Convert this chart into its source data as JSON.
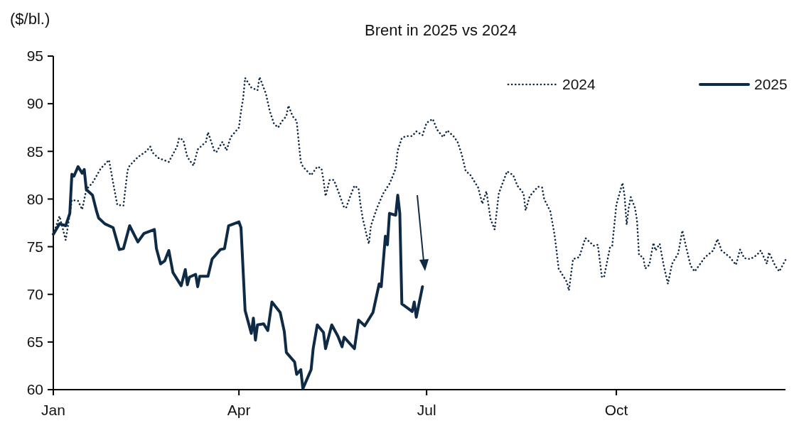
{
  "chart_data": {
    "type": "line",
    "title": "Brent in 2025 vs 2024",
    "ylabel": "($/bl.)",
    "xlim": [
      "--01-01",
      "--12-22"
    ],
    "xticks": [
      {
        "value": "--01-01",
        "label": "Jan"
      },
      {
        "value": "--04-01",
        "label": "Apr"
      },
      {
        "value": "--07-01",
        "label": "Jul"
      },
      {
        "value": "--10-01",
        "label": "Oct"
      }
    ],
    "ylim": [
      60,
      95
    ],
    "yticks": [
      60,
      65,
      70,
      75,
      80,
      85,
      90,
      95
    ],
    "legend": "top right",
    "grid": false,
    "series": [
      {
        "name": "2024",
        "color": "#0f2a45",
        "line_style": "dotted",
        "x": [
          "--01-01",
          "--01-04",
          "--01-07",
          "--01-08",
          "--01-10",
          "--01-13",
          "--01-15",
          "--01-17",
          "--01-20",
          "--01-24",
          "--01-28",
          "--01-30",
          "--02-01",
          "--02-04",
          "--02-06",
          "--02-07",
          "--02-11",
          "--02-15",
          "--02-17",
          "--02-18",
          "--02-21",
          "--02-26",
          "--03-02",
          "--03-03",
          "--03-05",
          "--03-07",
          "--03-10",
          "--03-12",
          "--03-16",
          "--03-17",
          "--03-20",
          "--03-21",
          "--03-24",
          "--03-26",
          "--03-28",
          "--04-01",
          "--04-02",
          "--04-03",
          "--04-04",
          "--04-07",
          "--04-10",
          "--04-11",
          "--04-14",
          "--04-16",
          "--04-18",
          "--04-20",
          "--04-22",
          "--04-24",
          "--04-25",
          "--04-27",
          "--04-29",
          "--04-30",
          "--05-01",
          "--05-02",
          "--05-06",
          "--05-09",
          "--05-11",
          "--05-12",
          "--05-13",
          "--05-15",
          "--05-17",
          "--05-19",
          "--05-22",
          "--05-23",
          "--05-25",
          "--05-27",
          "--05-29",
          "--05-30",
          "--05-31",
          "--06-02",
          "--06-03",
          "--06-04",
          "--06-07",
          "--06-10",
          "--06-13",
          "--06-14",
          "--06-16",
          "--06-17",
          "--06-19",
          "--06-21",
          "--06-24",
          "--06-26",
          "--06-29",
          "--07-01",
          "--07-04",
          "--07-06",
          "--07-09",
          "--07-11",
          "--07-14",
          "--07-16",
          "--07-18",
          "--07-20",
          "--07-22",
          "--07-26",
          "--07-28",
          "--07-30",
          "--08-01",
          "--08-03",
          "--08-05",
          "--08-09",
          "--08-12",
          "--08-14",
          "--08-17",
          "--08-18",
          "--08-20",
          "--08-24",
          "--08-26",
          "--08-27",
          "--08-30",
          "--09-01",
          "--09-02",
          "--09-03",
          "--09-07",
          "--09-08",
          "--09-10",
          "--09-13",
          "--09-16",
          "--09-20",
          "--09-22",
          "--09-24",
          "--09-25",
          "--09-28",
          "--09-29",
          "--10-01",
          "--10-04",
          "--10-05",
          "--10-06",
          "--10-07",
          "--10-08",
          "--10-10",
          "--10-11",
          "--10-12",
          "--10-14",
          "--10-15",
          "--10-17",
          "--10-19",
          "--10-20",
          "--10-22",
          "--10-24",
          "--10-26",
          "--10-28",
          "--10-31",
          "--11-02",
          "--11-04",
          "--11-06",
          "--11-08",
          "--11-10",
          "--11-13",
          "--11-17",
          "--11-19",
          "--11-21",
          "--11-25",
          "--11-28",
          "--11-30",
          "--12-02",
          "--12-05",
          "--12-08",
          "--12-10",
          "--12-13",
          "--12-14",
          "--12-17",
          "--12-19",
          "--12-22"
        ],
        "values": [
          76.3,
          78.2,
          75.7,
          77,
          79.9,
          79.8,
          78.9,
          81,
          81.7,
          83.2,
          84.1,
          81.7,
          79.4,
          79.3,
          83,
          83.5,
          84.4,
          85,
          85.5,
          84.9,
          84.3,
          83.9,
          85.5,
          86.4,
          86.2,
          84.4,
          83.5,
          85.2,
          86,
          87,
          85.1,
          84.9,
          86,
          85.1,
          86.5,
          87.5,
          89.2,
          90.5,
          92.7,
          91.7,
          91.4,
          92.8,
          91.1,
          89.2,
          87.9,
          87.5,
          88.2,
          88.7,
          89.8,
          88.7,
          88.2,
          86,
          83.9,
          83.4,
          82.5,
          83.4,
          83.2,
          82,
          80.3,
          82,
          82,
          80.9,
          79.1,
          79.1,
          80.3,
          81.4,
          81.1,
          79.3,
          78,
          76.1,
          75.3,
          77.2,
          79.1,
          80.6,
          81.6,
          82.1,
          83.2,
          85.1,
          86.4,
          86.6,
          86.6,
          87.1,
          86.7,
          88,
          88.4,
          87.3,
          86.5,
          87.2,
          86.6,
          86,
          84.7,
          82.9,
          82.6,
          81.2,
          79.5,
          80.8,
          77.9,
          76.8,
          80.6,
          82.9,
          82.5,
          81.4,
          80.6,
          78.8,
          80.3,
          81.3,
          81.2,
          80,
          78.7,
          76.3,
          74.6,
          72.7,
          71.3,
          70.4,
          73.7,
          73.9,
          75.9,
          75.1,
          75.2,
          71.8,
          71.8,
          75,
          75.1,
          79.4,
          81.7,
          80.3,
          77.3,
          79.1,
          80.2,
          79.1,
          77.8,
          74.1,
          73.9,
          72.7,
          73.1,
          75.4,
          74.6,
          75.3,
          73,
          71.1,
          73.2,
          74.3,
          76.7,
          74.8,
          73,
          72.4,
          73,
          73.9,
          74.6,
          75.8,
          74.6,
          73.9,
          73.1,
          74.7,
          73.8,
          73.7,
          74.1,
          74.6,
          73.2,
          74.4,
          73,
          72.4,
          73.6
        ]
      },
      {
        "name": "2025",
        "color": "#0f2a45",
        "line_style": "solid",
        "x": [
          "--01-01",
          "--01-04",
          "--01-07",
          "--01-09",
          "--01-10",
          "--01-11",
          "--01-13",
          "--01-15",
          "--01-16",
          "--01-17",
          "--01-20",
          "--01-22",
          "--01-23",
          "--01-26",
          "--01-30",
          "--02-02",
          "--02-04",
          "--02-07",
          "--02-11",
          "--02-14",
          "--02-19",
          "--02-20",
          "--02-22",
          "--02-24",
          "--02-26",
          "--02-28",
          "--03-04",
          "--03-06",
          "--03-07",
          "--03-08",
          "--03-11",
          "--03-12",
          "--03-13",
          "--03-17",
          "--03-19",
          "--03-23",
          "--03-25",
          "--03-27",
          "--04-01",
          "--04-02",
          "--04-04",
          "--04-07",
          "--04-08",
          "--04-09",
          "--04-10",
          "--04-13",
          "--04-15",
          "--04-17",
          "--04-21",
          "--04-23",
          "--04-24",
          "--04-28",
          "--04-29",
          "--05-01",
          "--05-02",
          "--05-06",
          "--05-07",
          "--05-09",
          "--05-12",
          "--05-13",
          "--05-16",
          "--05-19",
          "--05-21",
          "--05-22",
          "--05-27",
          "--05-29",
          "--06-01",
          "--06-05",
          "--06-08",
          "--06-09",
          "--06-11",
          "--06-12",
          "--06-13",
          "--06-16",
          "--06-17",
          "--06-18",
          "--06-19",
          "--06-24",
          "--06-25",
          "--06-26",
          "--06-29"
        ],
        "values": [
          76.3,
          77.4,
          77.2,
          78.5,
          82.6,
          82.4,
          83.4,
          82.7,
          83.1,
          81,
          80.4,
          78.7,
          78,
          77.4,
          77,
          74.7,
          74.8,
          77.2,
          75.5,
          76.4,
          76.8,
          74.8,
          73.2,
          73.5,
          74.6,
          72.3,
          70.9,
          72.6,
          71,
          71.8,
          72.1,
          70.8,
          71.9,
          71.9,
          73.7,
          74.7,
          74.8,
          77.2,
          77.6,
          77,
          68.3,
          65.9,
          67.5,
          65.2,
          66.8,
          66.9,
          66.2,
          69.2,
          68.1,
          66.1,
          63.9,
          62.9,
          61.6,
          62.1,
          60.1,
          62.1,
          64.3,
          66.8,
          66,
          64.3,
          66.8,
          65.6,
          64.5,
          65.5,
          64.3,
          67.3,
          66.7,
          68.1,
          71.1,
          70.8,
          76.1,
          75.2,
          78.5,
          78.3,
          80.4,
          78.5,
          69,
          68.2,
          69.2,
          67.6,
          70.8
        ]
      }
    ]
  }
}
